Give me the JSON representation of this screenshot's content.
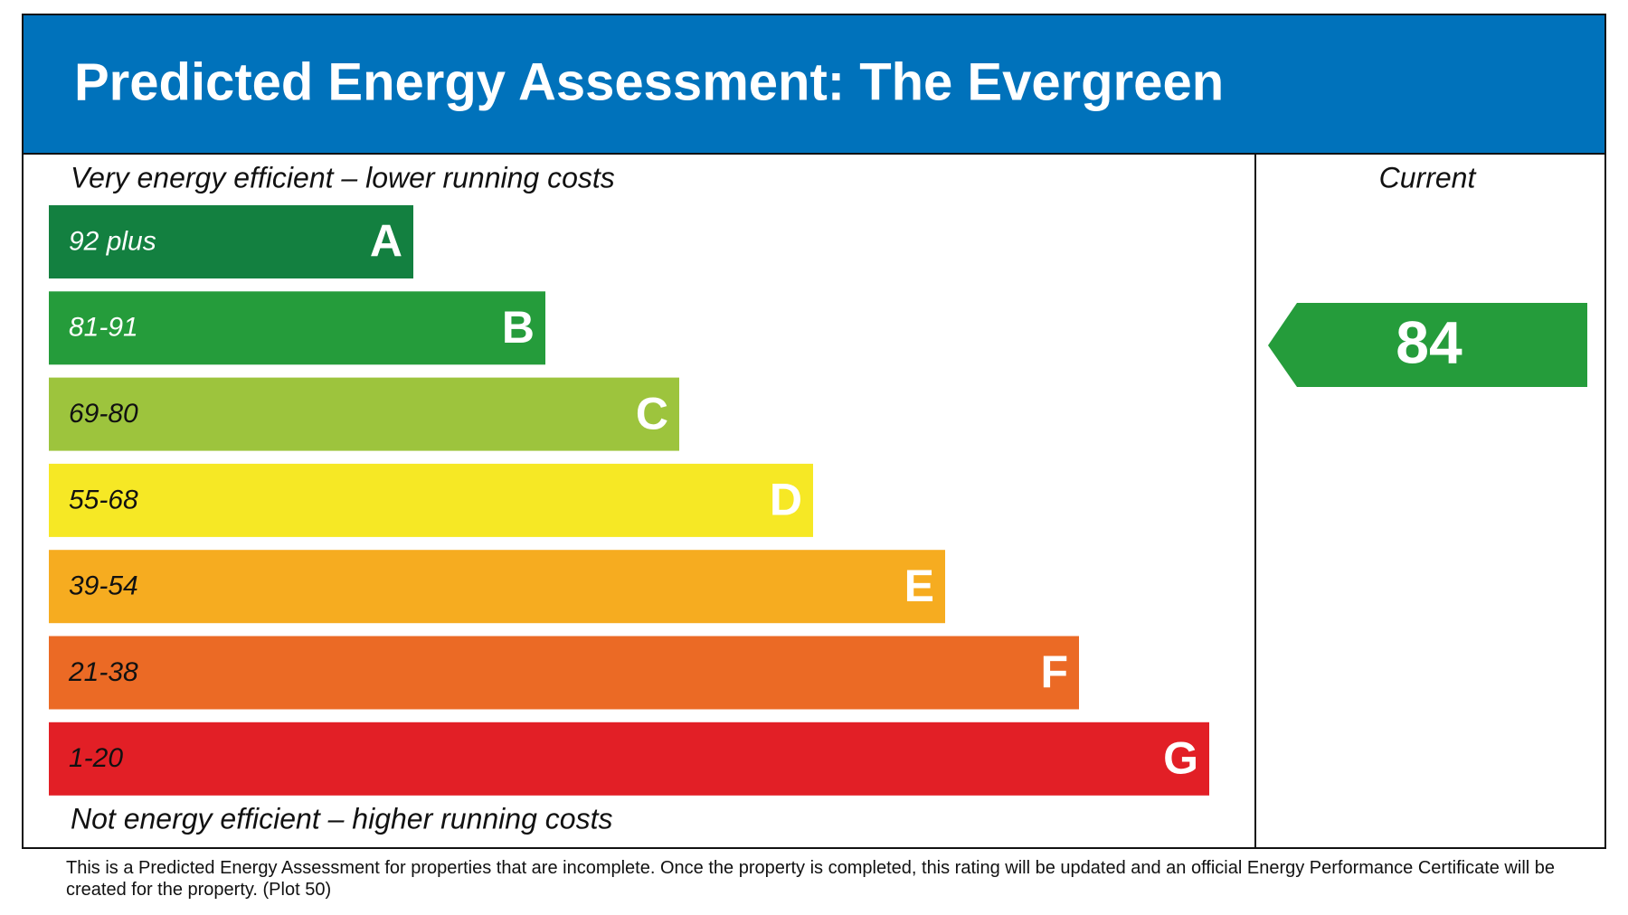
{
  "header": {
    "title": "Predicted Energy Assessment: The Evergreen"
  },
  "top_note": "Very energy efficient – lower running costs",
  "bottom_note": "Not energy efficient – higher running costs",
  "bands": [
    {
      "range": "92 plus",
      "letter": "A",
      "color": "#138040"
    },
    {
      "range": "81-91",
      "letter": "B",
      "color": "#259c3b"
    },
    {
      "range": "69-80",
      "letter": "C",
      "color": "#9dc43d"
    },
    {
      "range": "55-68",
      "letter": "D",
      "color": "#f6e825"
    },
    {
      "range": "39-54",
      "letter": "E",
      "color": "#f6ac20"
    },
    {
      "range": "21-38",
      "letter": "F",
      "color": "#eb6a25"
    },
    {
      "range": "1-20",
      "letter": "G",
      "color": "#e21f26"
    }
  ],
  "current": {
    "heading": "Current",
    "rating": "84",
    "color": "#259c3b"
  },
  "footnote": "This is a Predicted Energy Assessment for properties that are incomplete. Once the property is completed, this rating will be updated and an official Energy Performance Certificate will be created for the property. (Plot 50)"
}
